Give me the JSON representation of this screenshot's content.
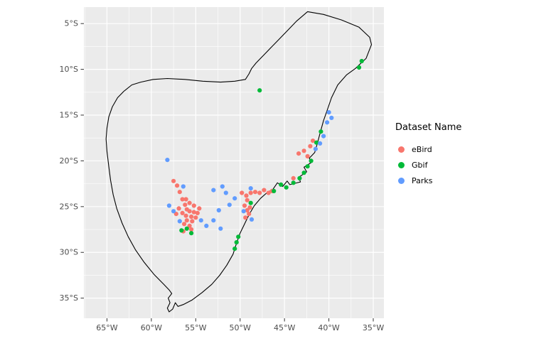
{
  "figure": {
    "background": "#FFFFFF",
    "panel_bg": "#EBEBEB",
    "grid_color": "#FFFFFF",
    "outline_color": "#000000",
    "tick_color": "#333333",
    "axis_text_color": "#4D4D4D"
  },
  "legend": {
    "title": "Dataset Name",
    "entries": [
      {
        "label": "eBird",
        "color": "#F8766D"
      },
      {
        "label": "Gbif",
        "color": "#00BA38"
      },
      {
        "label": "Parks",
        "color": "#619CFF"
      }
    ]
  },
  "chart_data": {
    "type": "scatter",
    "title": "",
    "xlabel": "",
    "ylabel": "",
    "xlim": [
      -67.6,
      -33.8
    ],
    "ylim": [
      -37.2,
      -3.2
    ],
    "grid": true,
    "legend_position": "right",
    "x_ticks": [
      {
        "value": -65,
        "label": "65°W"
      },
      {
        "value": -60,
        "label": "60°W"
      },
      {
        "value": -55,
        "label": "55°W"
      },
      {
        "value": -50,
        "label": "50°W"
      },
      {
        "value": -45,
        "label": "45°W"
      },
      {
        "value": -40,
        "label": "40°W"
      },
      {
        "value": -35,
        "label": "35°W"
      }
    ],
    "y_ticks": [
      {
        "value": -5,
        "label": "5°S"
      },
      {
        "value": -10,
        "label": "10°S"
      },
      {
        "value": -15,
        "label": "15°S"
      },
      {
        "value": -20,
        "label": "20°S"
      },
      {
        "value": -25,
        "label": "25°S"
      },
      {
        "value": -30,
        "label": "30°S"
      },
      {
        "value": -35,
        "label": "35°S"
      }
    ],
    "map_outline": [
      [
        -42.4,
        -3.7
      ],
      [
        -40.6,
        -4.0
      ],
      [
        -38.6,
        -4.6
      ],
      [
        -36.6,
        -5.4
      ],
      [
        -35.4,
        -6.5
      ],
      [
        -35.2,
        -7.3
      ],
      [
        -35.8,
        -8.8
      ],
      [
        -37.0,
        -9.9
      ],
      [
        -38.0,
        -10.6
      ],
      [
        -39.0,
        -11.7
      ],
      [
        -39.7,
        -13.1
      ],
      [
        -40.2,
        -14.5
      ],
      [
        -40.6,
        -15.6
      ],
      [
        -41.0,
        -17.0
      ],
      [
        -41.3,
        -18.1
      ],
      [
        -41.6,
        -19.1
      ],
      [
        -42.2,
        -19.7
      ],
      [
        -42.0,
        -20.2
      ],
      [
        -42.8,
        -20.7
      ],
      [
        -42.5,
        -21.2
      ],
      [
        -43.4,
        -21.8
      ],
      [
        -43.2,
        -22.3
      ],
      [
        -44.4,
        -22.6
      ],
      [
        -44.7,
        -22.2
      ],
      [
        -45.2,
        -22.8
      ],
      [
        -45.8,
        -22.4
      ],
      [
        -46.3,
        -23.1
      ],
      [
        -47.0,
        -23.5
      ],
      [
        -47.7,
        -24.1
      ],
      [
        -48.4,
        -24.9
      ],
      [
        -49.0,
        -25.9
      ],
      [
        -49.5,
        -26.9
      ],
      [
        -50.0,
        -27.9
      ],
      [
        -50.4,
        -29.0
      ],
      [
        -50.8,
        -30.2
      ],
      [
        -51.5,
        -31.4
      ],
      [
        -52.3,
        -32.5
      ],
      [
        -53.2,
        -33.5
      ],
      [
        -54.3,
        -34.4
      ],
      [
        -55.4,
        -35.2
      ],
      [
        -56.4,
        -35.7
      ],
      [
        -57.0,
        -35.9
      ],
      [
        -57.3,
        -35.5
      ],
      [
        -57.6,
        -36.2
      ],
      [
        -58.0,
        -36.5
      ],
      [
        -58.2,
        -36.1
      ],
      [
        -57.9,
        -35.5
      ],
      [
        -58.1,
        -35.0
      ],
      [
        -57.7,
        -34.5
      ],
      [
        -58.0,
        -34.1
      ],
      [
        -58.6,
        -33.5
      ],
      [
        -59.7,
        -32.4
      ],
      [
        -60.8,
        -31.1
      ],
      [
        -61.8,
        -29.7
      ],
      [
        -62.6,
        -28.3
      ],
      [
        -63.3,
        -26.8
      ],
      [
        -63.9,
        -25.2
      ],
      [
        -64.3,
        -23.7
      ],
      [
        -64.6,
        -22.1
      ],
      [
        -64.8,
        -20.6
      ],
      [
        -65.0,
        -19.0
      ],
      [
        -65.1,
        -17.6
      ],
      [
        -65.0,
        -16.4
      ],
      [
        -64.8,
        -15.2
      ],
      [
        -64.4,
        -14.1
      ],
      [
        -63.8,
        -13.1
      ],
      [
        -63.1,
        -12.4
      ],
      [
        -62.2,
        -11.7
      ],
      [
        -61.2,
        -11.4
      ],
      [
        -59.8,
        -11.1
      ],
      [
        -58.2,
        -11.0
      ],
      [
        -56.2,
        -11.1
      ],
      [
        -54.2,
        -11.3
      ],
      [
        -52.2,
        -11.4
      ],
      [
        -50.6,
        -11.3
      ],
      [
        -49.4,
        -11.1
      ],
      [
        -49.0,
        -10.5
      ],
      [
        -48.7,
        -9.9
      ],
      [
        -48.2,
        -9.3
      ],
      [
        -47.2,
        -8.3
      ],
      [
        -46.0,
        -7.1
      ],
      [
        -44.8,
        -5.9
      ],
      [
        -43.6,
        -4.7
      ]
    ],
    "series": [
      {
        "name": "eBird",
        "color": "#F8766D",
        "points": [
          [
            -57.5,
            -22.2
          ],
          [
            -57.1,
            -22.7
          ],
          [
            -56.8,
            -23.4
          ],
          [
            -56.5,
            -24.2
          ],
          [
            -56.2,
            -24.8
          ],
          [
            -56.0,
            -25.3
          ],
          [
            -56.9,
            -25.2
          ],
          [
            -57.2,
            -25.8
          ],
          [
            -56.5,
            -25.7
          ],
          [
            -56.1,
            -26.0
          ],
          [
            -55.7,
            -25.5
          ],
          [
            -55.5,
            -26.1
          ],
          [
            -55.2,
            -25.6
          ],
          [
            -56.0,
            -26.5
          ],
          [
            -56.3,
            -26.9
          ],
          [
            -55.7,
            -27.1
          ],
          [
            -55.4,
            -26.6
          ],
          [
            -55.0,
            -26.2
          ],
          [
            -54.8,
            -25.7
          ],
          [
            -54.6,
            -25.2
          ],
          [
            -55.2,
            -24.9
          ],
          [
            -55.7,
            -24.6
          ],
          [
            -56.1,
            -24.2
          ],
          [
            -55.5,
            -27.5
          ],
          [
            -56.4,
            -27.7
          ],
          [
            -49.8,
            -23.5
          ],
          [
            -49.3,
            -23.8
          ],
          [
            -48.8,
            -23.5
          ],
          [
            -48.3,
            -23.4
          ],
          [
            -47.8,
            -23.5
          ],
          [
            -47.3,
            -23.2
          ],
          [
            -46.8,
            -23.5
          ],
          [
            -46.4,
            -23.3
          ],
          [
            -49.2,
            -24.3
          ],
          [
            -49.5,
            -24.9
          ],
          [
            -49.2,
            -25.4
          ],
          [
            -48.9,
            -25.1
          ],
          [
            -49.0,
            -25.8
          ],
          [
            -49.4,
            -26.2
          ],
          [
            -43.4,
            -19.2
          ],
          [
            -42.8,
            -18.9
          ],
          [
            -42.4,
            -19.5
          ],
          [
            -42.1,
            -18.4
          ],
          [
            -41.8,
            -17.8
          ],
          [
            -44.0,
            -21.9
          ]
        ]
      },
      {
        "name": "Gbif",
        "color": "#00BA38",
        "points": [
          [
            -36.3,
            -9.1
          ],
          [
            -36.6,
            -9.8
          ],
          [
            -47.8,
            -12.3
          ],
          [
            -40.9,
            -16.8
          ],
          [
            -41.4,
            -18.0
          ],
          [
            -42.0,
            -20.0
          ],
          [
            -42.4,
            -20.6
          ],
          [
            -42.8,
            -21.3
          ],
          [
            -43.3,
            -21.9
          ],
          [
            -44.0,
            -22.4
          ],
          [
            -44.8,
            -22.9
          ],
          [
            -45.4,
            -22.6
          ],
          [
            -46.2,
            -23.3
          ],
          [
            -48.8,
            -24.6
          ],
          [
            -50.2,
            -28.3
          ],
          [
            -50.4,
            -28.9
          ],
          [
            -50.6,
            -29.6
          ],
          [
            -56.0,
            -27.4
          ],
          [
            -55.5,
            -27.9
          ],
          [
            -56.6,
            -27.6
          ]
        ]
      },
      {
        "name": "Parks",
        "color": "#619CFF",
        "points": [
          [
            -58.2,
            -19.9
          ],
          [
            -56.4,
            -22.8
          ],
          [
            -53.0,
            -23.2
          ],
          [
            -52.0,
            -22.8
          ],
          [
            -51.6,
            -23.5
          ],
          [
            -51.2,
            -24.8
          ],
          [
            -50.6,
            -24.1
          ],
          [
            -52.4,
            -25.4
          ],
          [
            -53.0,
            -26.5
          ],
          [
            -53.8,
            -27.1
          ],
          [
            -54.4,
            -26.5
          ],
          [
            -57.5,
            -25.5
          ],
          [
            -58.0,
            -24.9
          ],
          [
            -56.8,
            -26.6
          ],
          [
            -52.2,
            -27.4
          ],
          [
            -49.6,
            -25.5
          ],
          [
            -48.7,
            -26.4
          ],
          [
            -48.8,
            -23.0
          ],
          [
            -40.0,
            -14.7
          ],
          [
            -39.7,
            -15.3
          ],
          [
            -40.2,
            -15.8
          ],
          [
            -40.6,
            -17.3
          ],
          [
            -41.0,
            -18.1
          ],
          [
            -41.5,
            -18.7
          ]
        ]
      }
    ]
  }
}
